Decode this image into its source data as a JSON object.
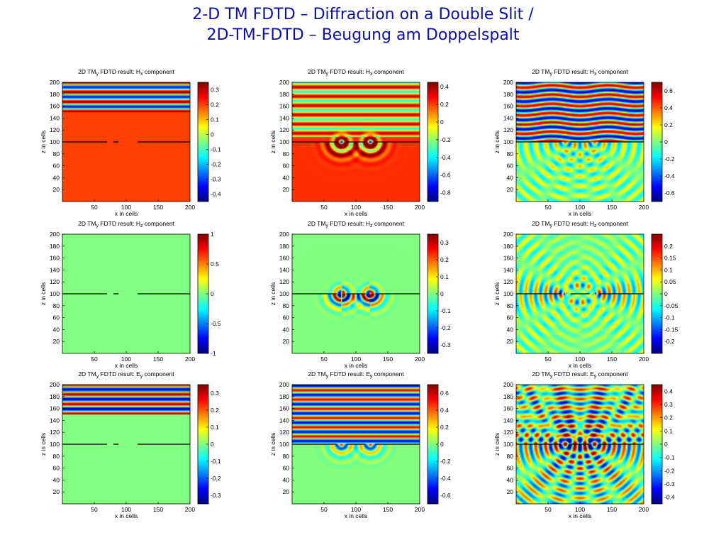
{
  "slide": {
    "title_line1": "2-D TM FDTD – Diffraction on a Double Slit /",
    "title_line2": "2D-TM-FDTD – Beugung am Doppelspalt"
  },
  "colormap": "jet",
  "chart_data": [
    {
      "type": "heatmap",
      "row": 1,
      "col": 1,
      "title_prefix": "2D TM",
      "title_sub": "y",
      "title_mid": " FDTD result: H",
      "title_comp_sub": "x",
      "title_suffix": " component",
      "xlabel": "x in cells",
      "ylabel": "z in cells",
      "xlim": [
        0,
        200
      ],
      "ylim": [
        0,
        200
      ],
      "x_ticks": [
        50,
        100,
        150,
        200
      ],
      "y_ticks": [
        20,
        40,
        60,
        80,
        100,
        120,
        140,
        160,
        180,
        200
      ],
      "clim": [
        -0.45,
        0.35
      ],
      "colorbar_ticks": [
        0.3,
        0.2,
        0.1,
        0,
        -0.1,
        -0.2,
        -0.3,
        -0.4
      ],
      "colorbar_labels": [
        "0.3",
        "0.2",
        "0.1",
        "0",
        "-0.1",
        "-0.2",
        "-0.3",
        "-0.4"
      ],
      "field": "Hx",
      "stage": 1,
      "screen_z": 100,
      "slits": [
        [
          70,
          80
        ],
        [
          88,
          118
        ]
      ]
    },
    {
      "type": "heatmap",
      "row": 1,
      "col": 2,
      "title_prefix": "2D TM",
      "title_sub": "y",
      "title_mid": " FDTD result: H",
      "title_comp_sub": "x",
      "title_suffix": " component",
      "xlabel": "x in cells",
      "ylabel": "z in cells",
      "xlim": [
        0,
        200
      ],
      "ylim": [
        0,
        200
      ],
      "x_ticks": [
        50,
        100,
        150,
        200
      ],
      "y_ticks": [
        20,
        40,
        60,
        80,
        100,
        120,
        140,
        160,
        180,
        200
      ],
      "clim": [
        -0.9,
        0.45
      ],
      "colorbar_ticks": [
        0.4,
        0.2,
        0,
        -0.2,
        -0.4,
        -0.6,
        -0.8
      ],
      "colorbar_labels": [
        "0.4",
        "0.2",
        "0",
        "-0.2",
        "-0.4",
        "-0.6",
        "-0.8"
      ],
      "field": "Hx",
      "stage": 2,
      "screen_z": 100,
      "slits": [
        [
          70,
          85
        ],
        [
          115,
          130
        ]
      ]
    },
    {
      "type": "heatmap",
      "row": 1,
      "col": 3,
      "title_prefix": "2D TM",
      "title_sub": "y",
      "title_mid": " FDTD result: H",
      "title_comp_sub": "x",
      "title_suffix": " component",
      "xlabel": "x in cells",
      "ylabel": "z in cells",
      "xlim": [
        0,
        200
      ],
      "ylim": [
        0,
        200
      ],
      "x_ticks": [
        50,
        100,
        150,
        200
      ],
      "y_ticks": [
        20,
        40,
        60,
        80,
        100,
        120,
        140,
        160,
        180,
        200
      ],
      "clim": [
        -0.7,
        0.7
      ],
      "colorbar_ticks": [
        0.6,
        0.4,
        0.2,
        0,
        -0.2,
        -0.4,
        -0.6
      ],
      "colorbar_labels": [
        "0.6",
        "0.4",
        "0.2",
        "0",
        "-0.2",
        "-0.4",
        "-0.6"
      ],
      "field": "Hx",
      "stage": 3,
      "screen_z": 100,
      "slits": [
        [
          70,
          85
        ],
        [
          115,
          130
        ]
      ]
    },
    {
      "type": "heatmap",
      "row": 2,
      "col": 1,
      "title_prefix": "2D TM",
      "title_sub": "y",
      "title_mid": " FDTD result: H",
      "title_comp_sub": "z",
      "title_suffix": " component",
      "xlabel": "x in cells",
      "ylabel": "z in cells",
      "xlim": [
        0,
        200
      ],
      "ylim": [
        0,
        200
      ],
      "x_ticks": [
        50,
        100,
        150,
        200
      ],
      "y_ticks": [
        20,
        40,
        60,
        80,
        100,
        120,
        140,
        160,
        180,
        200
      ],
      "clim": [
        -1,
        1
      ],
      "colorbar_ticks": [
        1,
        0.5,
        0,
        -0.5,
        -1
      ],
      "colorbar_labels": [
        "1",
        "0.5",
        "0",
        "-0.5",
        "-1"
      ],
      "field": "Hz",
      "stage": 1,
      "screen_z": 100,
      "slits": [
        [
          70,
          80
        ],
        [
          88,
          118
        ]
      ]
    },
    {
      "type": "heatmap",
      "row": 2,
      "col": 2,
      "title_prefix": "2D TM",
      "title_sub": "y",
      "title_mid": " FDTD result: H",
      "title_comp_sub": "z",
      "title_suffix": " component",
      "xlabel": "x in cells",
      "ylabel": "z in cells",
      "xlim": [
        0,
        200
      ],
      "ylim": [
        0,
        200
      ],
      "x_ticks": [
        50,
        100,
        150,
        200
      ],
      "y_ticks": [
        20,
        40,
        60,
        80,
        100,
        120,
        140,
        160,
        180,
        200
      ],
      "clim": [
        -0.35,
        0.35
      ],
      "colorbar_ticks": [
        0.3,
        0.2,
        0.1,
        0,
        -0.1,
        -0.2,
        -0.3
      ],
      "colorbar_labels": [
        "0.3",
        "0.2",
        "0.1",
        "0",
        "-0.1",
        "-0.2",
        "-0.3"
      ],
      "field": "Hz",
      "stage": 2,
      "screen_z": 100,
      "slits": [
        [
          70,
          85
        ],
        [
          115,
          130
        ]
      ]
    },
    {
      "type": "heatmap",
      "row": 2,
      "col": 3,
      "title_prefix": "2D TM",
      "title_sub": "y",
      "title_mid": " FDTD result: H",
      "title_comp_sub": "z",
      "title_suffix": " component",
      "xlabel": "x in cells",
      "ylabel": "z in cells",
      "xlim": [
        0,
        200
      ],
      "ylim": [
        0,
        200
      ],
      "x_ticks": [
        50,
        100,
        150,
        200
      ],
      "y_ticks": [
        20,
        40,
        60,
        80,
        100,
        120,
        140,
        160,
        180,
        200
      ],
      "clim": [
        -0.25,
        0.25
      ],
      "colorbar_ticks": [
        0.2,
        0.15,
        0.1,
        0.05,
        0,
        -0.05,
        -0.1,
        -0.15,
        -0.2
      ],
      "colorbar_labels": [
        "0.2",
        "0.15",
        "0.1",
        "0.05",
        "0",
        "-0.05",
        "-0.1",
        "-0.15",
        "-0.2"
      ],
      "field": "Hz",
      "stage": 3,
      "screen_z": 100,
      "slits": [
        [
          70,
          85
        ],
        [
          115,
          130
        ]
      ]
    },
    {
      "type": "heatmap",
      "row": 3,
      "col": 1,
      "title_prefix": "2D TM",
      "title_sub": "y",
      "title_mid": " FDTD result: E",
      "title_comp_sub": "y",
      "title_suffix": " component",
      "xlabel": "x in cells",
      "ylabel": "z in cells",
      "xlim": [
        0,
        200
      ],
      "ylim": [
        0,
        200
      ],
      "x_ticks": [
        50,
        100,
        150,
        200
      ],
      "y_ticks": [
        20,
        40,
        60,
        80,
        100,
        120,
        140,
        160,
        180,
        200
      ],
      "clim": [
        -0.35,
        0.35
      ],
      "colorbar_ticks": [
        0.3,
        0.2,
        0.1,
        0,
        -0.1,
        -0.2,
        -0.3
      ],
      "colorbar_labels": [
        "0.3",
        "0.2",
        "0.1",
        "0",
        "-0.1",
        "-0.2",
        "-0.3"
      ],
      "field": "Ey",
      "stage": 1,
      "screen_z": 100,
      "slits": [
        [
          70,
          80
        ],
        [
          88,
          118
        ]
      ]
    },
    {
      "type": "heatmap",
      "row": 3,
      "col": 2,
      "title_prefix": "2D TM",
      "title_sub": "y",
      "title_mid": " FDTD result: E",
      "title_comp_sub": "y",
      "title_suffix": " component",
      "xlabel": "x in cells",
      "ylabel": "z in cells",
      "xlim": [
        0,
        200
      ],
      "ylim": [
        0,
        200
      ],
      "x_ticks": [
        50,
        100,
        150,
        200
      ],
      "y_ticks": [
        20,
        40,
        60,
        80,
        100,
        120,
        140,
        160,
        180,
        200
      ],
      "clim": [
        -0.7,
        0.7
      ],
      "colorbar_ticks": [
        0.6,
        0.4,
        0.2,
        0,
        -0.2,
        -0.4,
        -0.6
      ],
      "colorbar_labels": [
        "0.6",
        "0.4",
        "0.2",
        "0",
        "-0.2",
        "-0.4",
        "-0.6"
      ],
      "field": "Ey",
      "stage": 2,
      "screen_z": 100,
      "slits": [
        [
          70,
          85
        ],
        [
          115,
          130
        ]
      ]
    },
    {
      "type": "heatmap",
      "row": 3,
      "col": 3,
      "title_prefix": "2D TM",
      "title_sub": "y",
      "title_mid": " FDTD result: E",
      "title_comp_sub": "y",
      "title_suffix": " component",
      "xlabel": "x in cells",
      "ylabel": "z in cells",
      "xlim": [
        0,
        200
      ],
      "ylim": [
        0,
        200
      ],
      "x_ticks": [
        50,
        100,
        150,
        200
      ],
      "y_ticks": [
        20,
        40,
        60,
        80,
        100,
        120,
        140,
        160,
        180,
        200
      ],
      "clim": [
        -0.45,
        0.45
      ],
      "colorbar_ticks": [
        0.4,
        0.3,
        0.2,
        0.1,
        0,
        -0.1,
        -0.2,
        -0.3,
        -0.4
      ],
      "colorbar_labels": [
        "0.4",
        "0.3",
        "0.2",
        "0.1",
        "0",
        "-0.1",
        "-0.2",
        "-0.3",
        "-0.4"
      ],
      "field": "Ey",
      "stage": 3,
      "screen_z": 100,
      "slits": [
        [
          70,
          85
        ],
        [
          115,
          130
        ]
      ]
    }
  ]
}
